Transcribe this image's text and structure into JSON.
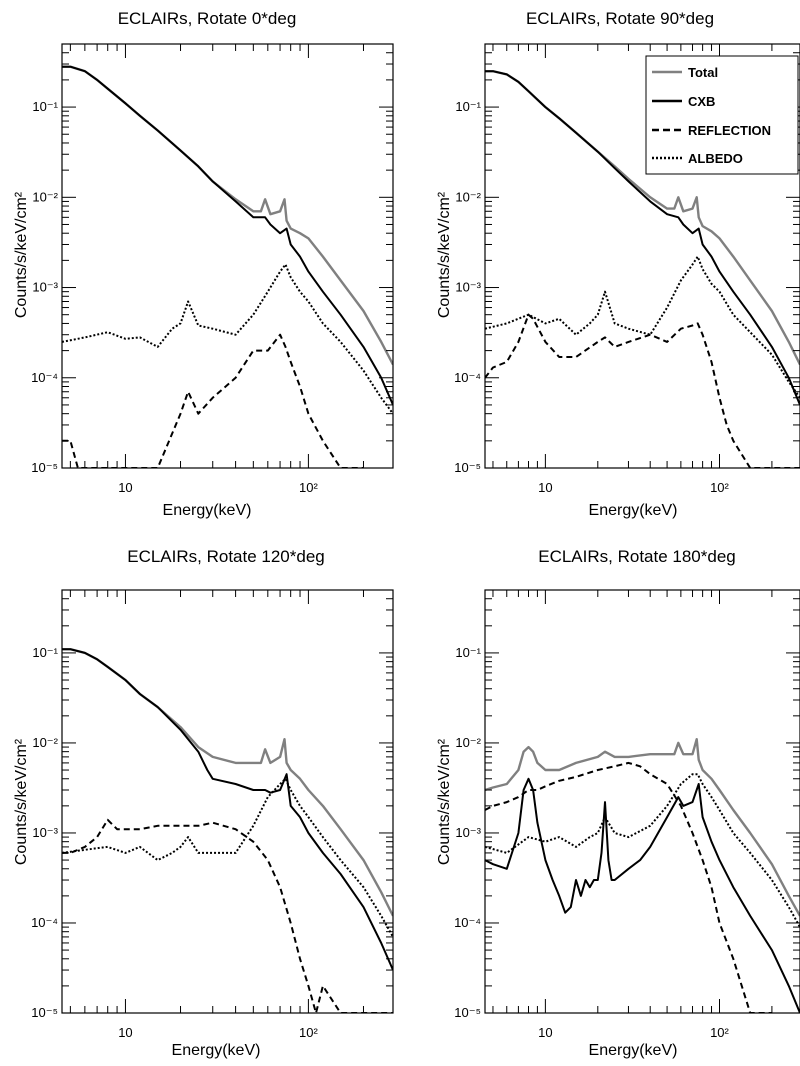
{
  "chart_data": [
    {
      "type": "line",
      "title": "ECLAIRs, Rotate 0*deg",
      "xlabel": "Energy(keV)",
      "ylabel": "Counts/s/keV/cm²",
      "xscale": "log",
      "yscale": "log",
      "xlim": [
        4.5,
        290
      ],
      "ylim": [
        1e-05,
        0.5
      ],
      "xticklabels": [
        "10",
        "10²"
      ],
      "yticklabels": [
        "10⁻⁵",
        "10⁻⁴",
        "10⁻³",
        "10⁻²",
        "10⁻¹"
      ],
      "legend": null,
      "series": [
        {
          "key": "total",
          "color": "#808080",
          "x": [
            4.5,
            5,
            6,
            7,
            8,
            10,
            12,
            15,
            20,
            25,
            30,
            40,
            50,
            55,
            58,
            62,
            70,
            74,
            76,
            80,
            90,
            100,
            120,
            150,
            200,
            250,
            290
          ],
          "y": [
            0.28,
            0.28,
            0.25,
            0.2,
            0.16,
            0.11,
            0.08,
            0.055,
            0.033,
            0.022,
            0.015,
            0.0095,
            0.007,
            0.007,
            0.0095,
            0.0065,
            0.007,
            0.0095,
            0.0055,
            0.0045,
            0.004,
            0.0035,
            0.0022,
            0.0012,
            0.00055,
            0.00025,
            0.00014
          ]
        },
        {
          "key": "cxb",
          "color": "#000000",
          "x": [
            4.5,
            5,
            6,
            7,
            8,
            10,
            12,
            15,
            20,
            25,
            30,
            40,
            50,
            58,
            62,
            70,
            76,
            80,
            90,
            100,
            120,
            150,
            200,
            250,
            290
          ],
          "y": [
            0.28,
            0.28,
            0.25,
            0.2,
            0.16,
            0.11,
            0.08,
            0.055,
            0.033,
            0.022,
            0.015,
            0.009,
            0.006,
            0.006,
            0.005,
            0.004,
            0.0045,
            0.003,
            0.0022,
            0.0015,
            0.0009,
            0.0005,
            0.00022,
            0.0001,
            5e-05
          ]
        },
        {
          "key": "reflection",
          "color": "#000000",
          "x": [
            4.5,
            5,
            5.5,
            6,
            8,
            10,
            15,
            20,
            22,
            25,
            30,
            40,
            50,
            60,
            70,
            75,
            80,
            90,
            100,
            120,
            150,
            180,
            200
          ],
          "y": [
            2e-05,
            2e-05,
            1e-05,
            1e-05,
            1e-05,
            1e-05,
            1e-05,
            4e-05,
            7e-05,
            4e-05,
            6e-05,
            0.0001,
            0.0002,
            0.0002,
            0.0003,
            0.00022,
            0.00015,
            8e-05,
            4e-05,
            2e-05,
            1e-05,
            1e-05,
            1e-05
          ]
        },
        {
          "key": "albedo",
          "color": "#000000",
          "x": [
            4.5,
            6,
            8,
            10,
            12,
            15,
            18,
            20,
            22,
            25,
            30,
            40,
            50,
            60,
            70,
            75,
            80,
            90,
            100,
            120,
            150,
            200,
            250,
            290
          ],
          "y": [
            0.00025,
            0.00028,
            0.00032,
            0.00027,
            0.00028,
            0.00022,
            0.00035,
            0.0004,
            0.0007,
            0.00038,
            0.00035,
            0.0003,
            0.0005,
            0.0009,
            0.0015,
            0.0018,
            0.0013,
            0.0009,
            0.0007,
            0.0004,
            0.00025,
            0.00012,
            6e-05,
            4e-05
          ]
        }
      ]
    },
    {
      "type": "line",
      "title": "ECLAIRs, Rotate 90*deg",
      "xlabel": "Energy(keV)",
      "ylabel": "Counts/s/keV/cm²",
      "xscale": "log",
      "yscale": "log",
      "xlim": [
        4.5,
        290
      ],
      "ylim": [
        1e-05,
        0.5
      ],
      "xticklabels": [
        "10",
        "10²"
      ],
      "yticklabels": [
        "10⁻⁵",
        "10⁻⁴",
        "10⁻³",
        "10⁻²",
        "10⁻¹"
      ],
      "legend": {
        "position": "top-right",
        "entries": [
          "Total",
          "CXB",
          "REFLECTION",
          "ALBEDO"
        ]
      },
      "series": [
        {
          "key": "total",
          "color": "#808080",
          "x": [
            4.5,
            5,
            6,
            7,
            8,
            10,
            12,
            15,
            20,
            25,
            30,
            40,
            50,
            55,
            58,
            62,
            70,
            74,
            76,
            80,
            90,
            100,
            120,
            150,
            200,
            250,
            290
          ],
          "y": [
            0.25,
            0.25,
            0.23,
            0.19,
            0.15,
            0.1,
            0.075,
            0.052,
            0.032,
            0.022,
            0.016,
            0.01,
            0.0075,
            0.0075,
            0.01,
            0.007,
            0.0075,
            0.01,
            0.006,
            0.0048,
            0.0042,
            0.0035,
            0.0022,
            0.0012,
            0.00055,
            0.00025,
            0.00014
          ]
        },
        {
          "key": "cxb",
          "color": "#000000",
          "x": [
            4.5,
            5,
            6,
            7,
            8,
            10,
            12,
            15,
            20,
            25,
            30,
            40,
            50,
            58,
            62,
            70,
            76,
            80,
            90,
            100,
            120,
            150,
            200,
            250,
            290
          ],
          "y": [
            0.25,
            0.25,
            0.23,
            0.19,
            0.15,
            0.1,
            0.075,
            0.052,
            0.032,
            0.021,
            0.015,
            0.009,
            0.0065,
            0.006,
            0.005,
            0.004,
            0.0045,
            0.003,
            0.0022,
            0.0015,
            0.0009,
            0.0005,
            0.00022,
            0.0001,
            5e-05
          ]
        },
        {
          "key": "reflection",
          "color": "#000000",
          "x": [
            4.5,
            5,
            6,
            7,
            8,
            8.5,
            10,
            12,
            15,
            20,
            22,
            25,
            30,
            40,
            50,
            60,
            70,
            75,
            80,
            90,
            100,
            110,
            120,
            150,
            200,
            250,
            290
          ],
          "y": [
            0.0001,
            0.00013,
            0.00015,
            0.00025,
            0.0005,
            0.00045,
            0.00025,
            0.00017,
            0.00017,
            0.00025,
            0.00028,
            0.00022,
            0.00025,
            0.0003,
            0.00025,
            0.00035,
            0.00038,
            0.0004,
            0.0003,
            0.00015,
            6e-05,
            3e-05,
            2e-05,
            1e-05,
            1e-05,
            1e-05,
            1e-05
          ]
        },
        {
          "key": "albedo",
          "color": "#000000",
          "x": [
            4.5,
            6,
            8,
            10,
            12,
            15,
            18,
            20,
            22,
            25,
            30,
            40,
            50,
            60,
            70,
            75,
            80,
            90,
            100,
            120,
            150,
            200,
            250,
            290
          ],
          "y": [
            0.00035,
            0.0004,
            0.0005,
            0.0004,
            0.00045,
            0.0003,
            0.0004,
            0.0005,
            0.0009,
            0.0004,
            0.00035,
            0.0003,
            0.0006,
            0.0012,
            0.0018,
            0.0022,
            0.0016,
            0.0011,
            0.0009,
            0.0005,
            0.00032,
            0.00018,
            9e-05,
            6e-05
          ]
        }
      ]
    },
    {
      "type": "line",
      "title": "ECLAIRs, Rotate 120*deg",
      "xlabel": "Energy(keV)",
      "ylabel": "Counts/s/keV/cm²",
      "xscale": "log",
      "yscale": "log",
      "xlim": [
        4.5,
        290
      ],
      "ylim": [
        1e-05,
        0.5
      ],
      "xticklabels": [
        "10",
        "10²"
      ],
      "yticklabels": [
        "10⁻⁵",
        "10⁻⁴",
        "10⁻³",
        "10⁻²",
        "10⁻¹"
      ],
      "legend": null,
      "series": [
        {
          "key": "total",
          "color": "#808080",
          "x": [
            4.5,
            5,
            6,
            7,
            8,
            10,
            12,
            15,
            20,
            25,
            30,
            40,
            50,
            55,
            58,
            62,
            70,
            74,
            76,
            80,
            90,
            100,
            120,
            150,
            200,
            250,
            290
          ],
          "y": [
            0.11,
            0.11,
            0.1,
            0.085,
            0.07,
            0.05,
            0.035,
            0.025,
            0.015,
            0.009,
            0.007,
            0.006,
            0.006,
            0.006,
            0.0085,
            0.006,
            0.007,
            0.011,
            0.006,
            0.005,
            0.004,
            0.003,
            0.002,
            0.0011,
            0.0005,
            0.00022,
            0.00012
          ]
        },
        {
          "key": "cxb",
          "color": "#000000",
          "x": [
            4.5,
            5,
            6,
            7,
            8,
            10,
            12,
            15,
            20,
            25,
            28,
            30,
            40,
            50,
            58,
            62,
            70,
            76,
            80,
            90,
            100,
            120,
            150,
            200,
            250,
            290
          ],
          "y": [
            0.11,
            0.11,
            0.1,
            0.085,
            0.07,
            0.05,
            0.035,
            0.025,
            0.014,
            0.008,
            0.005,
            0.004,
            0.0035,
            0.003,
            0.003,
            0.0028,
            0.003,
            0.0045,
            0.002,
            0.0015,
            0.001,
            0.0006,
            0.00035,
            0.00015,
            6e-05,
            3e-05
          ]
        },
        {
          "key": "reflection",
          "color": "#000000",
          "x": [
            4.5,
            5,
            6,
            7,
            8,
            9,
            10,
            12,
            15,
            20,
            25,
            30,
            40,
            50,
            60,
            70,
            80,
            90,
            100,
            110,
            120,
            150,
            200,
            250,
            290
          ],
          "y": [
            0.0006,
            0.0006,
            0.0007,
            0.0009,
            0.0014,
            0.0011,
            0.0011,
            0.0011,
            0.0012,
            0.0012,
            0.0012,
            0.0013,
            0.0011,
            0.0008,
            0.0005,
            0.00025,
            0.0001,
            4e-05,
            2e-05,
            1e-05,
            2e-05,
            1e-05,
            1e-05,
            1e-05,
            1e-05
          ]
        },
        {
          "key": "albedo",
          "color": "#000000",
          "x": [
            4.5,
            6,
            8,
            10,
            12,
            15,
            18,
            20,
            22,
            25,
            30,
            40,
            50,
            60,
            70,
            75,
            80,
            90,
            100,
            120,
            150,
            200,
            250,
            290
          ],
          "y": [
            0.0006,
            0.00065,
            0.0007,
            0.0006,
            0.0007,
            0.0005,
            0.0006,
            0.0007,
            0.0009,
            0.0006,
            0.0006,
            0.0006,
            0.0012,
            0.0025,
            0.0035,
            0.004,
            0.003,
            0.002,
            0.0015,
            0.0009,
            0.0005,
            0.00025,
            0.00012,
            7e-05
          ]
        }
      ]
    },
    {
      "type": "line",
      "title": "ECLAIRs, Rotate 180*deg",
      "xlabel": "Energy(keV)",
      "ylabel": "Counts/s/keV/cm²",
      "xscale": "log",
      "yscale": "log",
      "xlim": [
        4.5,
        290
      ],
      "ylim": [
        1e-05,
        0.5
      ],
      "xticklabels": [
        "10",
        "10²"
      ],
      "yticklabels": [
        "10⁻⁵",
        "10⁻⁴",
        "10⁻³",
        "10⁻²",
        "10⁻¹"
      ],
      "legend": null,
      "series": [
        {
          "key": "total",
          "color": "#808080",
          "x": [
            4.5,
            5,
            6,
            7,
            7.5,
            8,
            8.5,
            9,
            10,
            12,
            15,
            20,
            22,
            25,
            30,
            40,
            50,
            55,
            58,
            62,
            70,
            74,
            76,
            80,
            90,
            100,
            120,
            150,
            200,
            250,
            290
          ],
          "y": [
            0.003,
            0.0032,
            0.0035,
            0.005,
            0.008,
            0.009,
            0.008,
            0.006,
            0.005,
            0.005,
            0.006,
            0.007,
            0.008,
            0.007,
            0.007,
            0.0075,
            0.0075,
            0.0075,
            0.01,
            0.0075,
            0.0075,
            0.011,
            0.0065,
            0.005,
            0.004,
            0.003,
            0.0018,
            0.001,
            0.00045,
            0.0002,
            0.00012
          ]
        },
        {
          "key": "cxb",
          "color": "#000000",
          "x": [
            4.5,
            5,
            6,
            7,
            7.5,
            8,
            8.5,
            9,
            10,
            11,
            12,
            13,
            14,
            15,
            16,
            17,
            18,
            19,
            20,
            21,
            22,
            23,
            24,
            25,
            30,
            35,
            40,
            50,
            58,
            62,
            70,
            76,
            80,
            90,
            100,
            120,
            150,
            200,
            250,
            290
          ],
          "y": [
            0.0005,
            0.00045,
            0.0004,
            0.001,
            0.003,
            0.004,
            0.003,
            0.0013,
            0.0005,
            0.0003,
            0.0002,
            0.00013,
            0.00015,
            0.0003,
            0.0002,
            0.0003,
            0.00025,
            0.0003,
            0.0003,
            0.0006,
            0.0022,
            0.0005,
            0.0003,
            0.0003,
            0.0004,
            0.0005,
            0.0007,
            0.0015,
            0.0025,
            0.002,
            0.0022,
            0.0035,
            0.0015,
            0.0008,
            0.0005,
            0.00025,
            0.00012,
            5e-05,
            2e-05,
            1e-05
          ]
        },
        {
          "key": "reflection",
          "color": "#000000",
          "x": [
            4.5,
            5,
            6,
            7,
            8,
            9,
            10,
            12,
            15,
            20,
            25,
            30,
            35,
            40,
            50,
            60,
            70,
            80,
            90,
            100,
            120,
            150,
            200
          ],
          "y": [
            0.0018,
            0.002,
            0.0022,
            0.0025,
            0.003,
            0.003,
            0.0033,
            0.0038,
            0.0042,
            0.005,
            0.0055,
            0.006,
            0.0055,
            0.0045,
            0.0035,
            0.002,
            0.001,
            0.0005,
            0.00025,
            0.0001,
            4e-05,
            1e-05,
            1e-05
          ]
        },
        {
          "key": "albedo",
          "color": "#000000",
          "x": [
            4.5,
            6,
            8,
            10,
            12,
            15,
            18,
            20,
            22,
            25,
            30,
            40,
            50,
            60,
            70,
            75,
            80,
            90,
            100,
            120,
            150,
            200,
            250,
            290
          ],
          "y": [
            0.0007,
            0.0006,
            0.0009,
            0.0008,
            0.0009,
            0.0007,
            0.0009,
            0.001,
            0.0015,
            0.001,
            0.0009,
            0.0012,
            0.002,
            0.0035,
            0.0045,
            0.0045,
            0.0035,
            0.0025,
            0.0018,
            0.001,
            0.0006,
            0.0003,
            0.00015,
            9e-05
          ]
        }
      ]
    }
  ],
  "legend_labels": {
    "total": "Total",
    "cxb": "CXB",
    "reflection": "REFLECTION",
    "albedo": "ALBEDO"
  }
}
